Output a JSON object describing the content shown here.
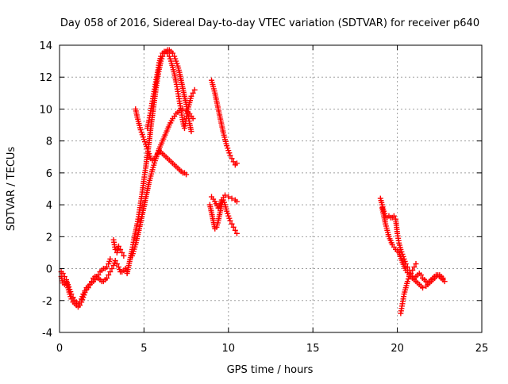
{
  "chart_data": {
    "type": "scatter",
    "title": "Day 058 of 2016, Sidereal Day-to-day VTEC variation (SDTVAR) for receiver p640",
    "xlabel": "GPS time / hours",
    "ylabel": "SDTVAR / TECUs",
    "xlim": [
      0,
      25
    ],
    "ylim": [
      -4,
      14
    ],
    "xticks": [
      0,
      5,
      10,
      15,
      20,
      25
    ],
    "yticks": [
      -4,
      -2,
      0,
      2,
      4,
      6,
      8,
      10,
      12,
      14
    ],
    "xtick_labels": [
      "0",
      "5",
      "10",
      "15",
      "20",
      "25"
    ],
    "ytick_labels": [
      "-4",
      "-2",
      "0",
      "2",
      "4",
      "6",
      "8",
      "10",
      "12",
      "14"
    ],
    "grid": true,
    "legend": "none",
    "marker": "+",
    "color": "#ff0000",
    "series": [
      {
        "x": [
          0.1,
          0.2,
          0.3,
          0.4,
          0.5,
          0.6,
          0.7,
          0.8,
          0.9,
          1.0,
          1.1,
          1.2,
          1.3,
          1.4,
          1.5,
          1.6,
          1.7,
          1.8,
          1.9,
          2.0,
          2.1,
          2.2,
          2.3,
          2.4,
          2.5,
          2.6,
          2.7,
          2.8,
          2.9,
          3.0,
          3.1,
          3.2,
          3.3,
          3.4,
          3.5,
          3.6,
          3.7,
          3.8,
          3.9,
          4.0
        ],
        "y": [
          -0.5,
          -0.9,
          -1.0,
          -0.8,
          -1.2,
          -1.6,
          -1.9,
          -2.1,
          -2.2,
          -2.3,
          -2.4,
          -2.3,
          -2.1,
          -1.8,
          -1.5,
          -1.3,
          -1.2,
          -1.0,
          -0.8,
          -0.6,
          -0.5,
          -0.5,
          -0.6,
          -0.7,
          -0.8,
          -0.8,
          -0.7,
          -0.6,
          -0.4,
          -0.2,
          0.0,
          0.2,
          0.5,
          0.3,
          0.1,
          -0.2,
          -0.2,
          -0.1,
          0.0,
          -0.2
        ]
      },
      {
        "x": [
          0.1,
          0.2,
          0.3,
          0.4,
          0.5,
          0.6,
          0.7,
          0.8,
          0.9,
          1.0,
          1.1,
          1.2,
          1.3,
          1.4,
          1.5,
          1.6,
          1.7,
          1.8,
          1.9,
          2.0,
          2.1,
          2.2,
          2.3,
          2.4,
          2.5,
          2.6,
          2.7,
          2.8,
          2.9,
          3.0
        ],
        "y": [
          -0.2,
          -0.3,
          -0.5,
          -0.7,
          -1.0,
          -1.3,
          -1.6,
          -1.8,
          -2.0,
          -2.1,
          -2.2,
          -2.1,
          -1.9,
          -1.6,
          -1.4,
          -1.2,
          -1.1,
          -1.0,
          -0.9,
          -0.8,
          -0.7,
          -0.5,
          -0.4,
          -0.2,
          -0.1,
          0.0,
          0.0,
          0.1,
          0.3,
          0.6
        ]
      },
      {
        "x": [
          3.2,
          3.3,
          3.4,
          3.5,
          3.6,
          3.7,
          3.8
        ],
        "y": [
          1.8,
          1.2,
          1.0,
          1.4,
          1.2,
          1.0,
          0.8
        ]
      },
      {
        "x": [
          4.0,
          4.1,
          4.2,
          4.3,
          4.4,
          4.5,
          4.6,
          4.7,
          4.8,
          4.9,
          5.0,
          5.1,
          5.2,
          5.3,
          5.4,
          5.5,
          5.6,
          5.7,
          5.8,
          5.9,
          6.0,
          6.1,
          6.2,
          6.3,
          6.4,
          6.5,
          6.6,
          6.7,
          6.8,
          6.9,
          7.0,
          7.1,
          7.2,
          7.3,
          7.4,
          7.5,
          7.6,
          7.7,
          7.8
        ],
        "y": [
          -0.3,
          0.2,
          0.7,
          1.2,
          1.8,
          2.3,
          2.8,
          3.4,
          4.1,
          4.8,
          5.6,
          6.3,
          7.1,
          7.9,
          8.8,
          9.6,
          10.4,
          11.2,
          11.9,
          12.5,
          13.0,
          13.3,
          13.5,
          13.6,
          13.7,
          13.7,
          13.6,
          13.5,
          13.3,
          13.0,
          12.7,
          12.3,
          11.8,
          11.3,
          10.8,
          10.3,
          9.7,
          9.1,
          8.6
        ]
      },
      {
        "x": [
          4.3,
          4.5,
          4.7,
          4.9,
          5.1,
          5.3,
          5.5,
          5.7,
          5.9,
          6.1,
          6.3,
          6.5,
          6.7,
          6.9,
          7.1,
          7.3,
          7.5,
          7.7,
          7.9
        ],
        "y": [
          0.8,
          1.5,
          2.4,
          3.4,
          4.4,
          5.4,
          6.2,
          6.9,
          7.5,
          8.0,
          8.5,
          9.0,
          9.4,
          9.7,
          9.9,
          10.0,
          9.9,
          9.7,
          9.4
        ]
      },
      {
        "x": [
          4.5,
          4.6,
          4.7,
          4.8,
          4.9,
          5.0,
          5.1,
          5.2,
          5.3,
          5.4,
          5.5,
          5.6,
          5.7,
          5.8,
          5.9,
          6.0,
          6.1,
          6.2,
          6.3,
          6.4,
          6.5,
          6.6,
          6.7,
          6.8,
          6.9,
          7.0,
          7.1,
          7.2,
          7.3,
          7.4,
          7.5
        ],
        "y": [
          10.0,
          9.5,
          9.1,
          8.7,
          8.4,
          8.1,
          7.8,
          7.5,
          7.2,
          6.9,
          6.8,
          6.9,
          7.0,
          7.2,
          7.4,
          7.3,
          7.2,
          7.1,
          7.0,
          6.9,
          6.8,
          6.7,
          6.6,
          6.5,
          6.4,
          6.3,
          6.2,
          6.1,
          6.0,
          6.0,
          5.9
        ]
      },
      {
        "x": [
          5.2,
          5.3,
          5.4,
          5.5,
          5.6,
          5.7,
          5.8,
          5.9,
          6.0,
          6.1,
          6.2,
          6.3,
          6.4,
          6.5,
          6.6,
          6.7,
          6.8,
          6.9,
          7.0,
          7.1,
          7.2,
          7.3,
          7.4,
          7.5,
          7.6,
          7.7,
          7.8,
          7.9,
          8.0
        ],
        "y": [
          8.8,
          9.3,
          9.9,
          10.5,
          11.1,
          11.7,
          12.3,
          12.9,
          13.3,
          13.5,
          13.6,
          13.6,
          13.5,
          13.3,
          13.0,
          12.6,
          12.2,
          11.7,
          11.1,
          10.5,
          9.9,
          9.2,
          8.8,
          9.4,
          10.0,
          10.4,
          10.8,
          11.0,
          11.2
        ]
      },
      {
        "x": [
          9.0,
          9.1,
          9.2,
          9.3,
          9.4,
          9.5,
          9.6,
          9.7,
          9.8,
          9.9,
          10.0,
          10.1,
          10.2,
          10.3,
          10.4,
          10.5
        ],
        "y": [
          11.8,
          11.4,
          11.0,
          10.5,
          10.0,
          9.5,
          9.0,
          8.5,
          8.1,
          7.7,
          7.4,
          7.1,
          6.9,
          6.7,
          6.5,
          6.6
        ]
      },
      {
        "x": [
          8.9,
          9.0,
          9.1,
          9.2,
          9.3,
          9.4,
          9.5,
          9.6,
          9.7,
          9.8,
          9.9,
          10.0,
          10.1,
          10.2,
          10.3,
          10.4,
          10.5
        ],
        "y": [
          4.0,
          3.5,
          3.0,
          2.5,
          2.6,
          3.0,
          3.5,
          4.0,
          4.3,
          4.0,
          3.6,
          3.3,
          3.0,
          2.8,
          2.6,
          2.4,
          2.2
        ]
      },
      {
        "x": [
          9.0,
          9.2,
          9.4,
          9.6,
          9.8,
          10.0,
          10.2,
          10.4,
          10.5
        ],
        "y": [
          4.5,
          4.2,
          3.8,
          4.3,
          4.6,
          4.5,
          4.4,
          4.3,
          4.2
        ]
      },
      {
        "x": [
          19.0,
          19.1,
          19.2,
          19.3,
          19.4,
          19.5,
          19.6,
          19.7,
          19.8,
          19.9,
          20.0,
          20.1,
          20.2,
          20.3,
          20.4,
          20.5,
          20.6,
          20.7,
          20.8,
          20.9,
          21.0,
          21.1,
          21.2,
          21.3,
          21.4,
          21.5,
          21.6,
          21.7,
          21.8,
          21.9,
          22.0,
          22.1,
          22.2,
          22.3,
          22.4,
          22.5,
          22.6,
          22.7,
          22.8
        ],
        "y": [
          4.4,
          4.0,
          3.6,
          3.3,
          3.2,
          3.3,
          3.2,
          3.2,
          3.3,
          3.1,
          2.2,
          1.6,
          1.2,
          0.9,
          0.6,
          0.3,
          0.1,
          -0.1,
          -0.3,
          -0.5,
          -0.6,
          -0.5,
          -0.4,
          -0.3,
          -0.4,
          -0.6,
          -0.7,
          -0.8,
          -0.9,
          -0.8,
          -0.7,
          -0.6,
          -0.5,
          -0.4,
          -0.4,
          -0.5,
          -0.6,
          -0.7,
          -0.8
        ]
      },
      {
        "x": [
          19.1,
          19.3,
          19.5,
          19.7,
          19.9,
          20.1,
          20.3,
          20.5,
          20.7,
          20.9,
          21.1,
          21.3,
          21.5,
          21.7,
          21.9,
          22.1,
          22.3,
          22.5,
          22.7
        ],
        "y": [
          3.8,
          2.8,
          2.0,
          1.5,
          1.2,
          1.0,
          0.4,
          -0.1,
          -0.4,
          -0.6,
          -0.8,
          -1.0,
          -1.2,
          -1.1,
          -0.9,
          -0.7,
          -0.5,
          -0.4,
          -0.6
        ]
      },
      {
        "x": [
          20.2,
          20.3,
          20.4,
          20.5,
          20.6,
          20.7,
          20.8,
          20.9,
          21.0,
          21.1
        ],
        "y": [
          -2.8,
          -2.2,
          -1.6,
          -1.2,
          -0.8,
          -0.5,
          -0.3,
          -0.1,
          0.1,
          0.3
        ]
      }
    ]
  }
}
